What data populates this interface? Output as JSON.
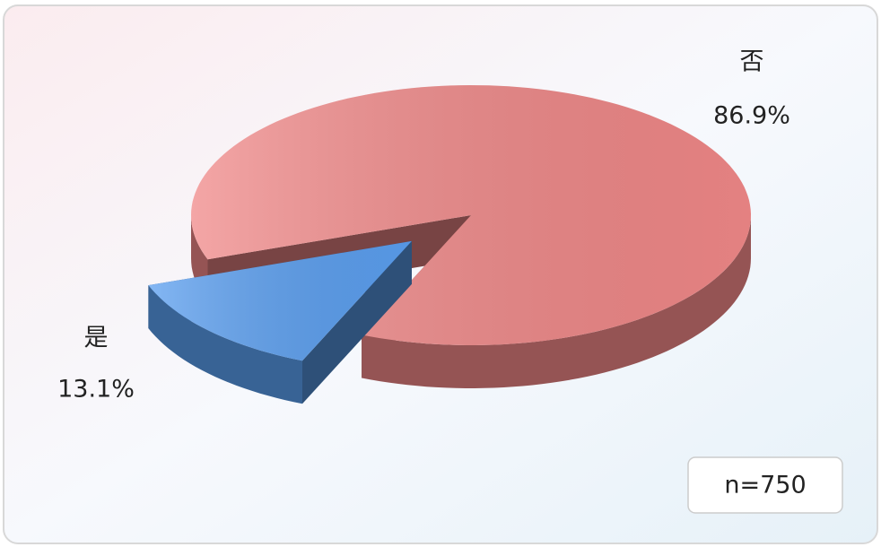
{
  "chart_data": {
    "type": "pie",
    "categories": [
      "是",
      "否"
    ],
    "values": [
      13.1,
      86.9
    ],
    "value_labels": [
      "13.1%",
      "86.9%"
    ],
    "colors": [
      "#5b9ff0",
      "#f08888"
    ],
    "annotation": "n=750"
  }
}
